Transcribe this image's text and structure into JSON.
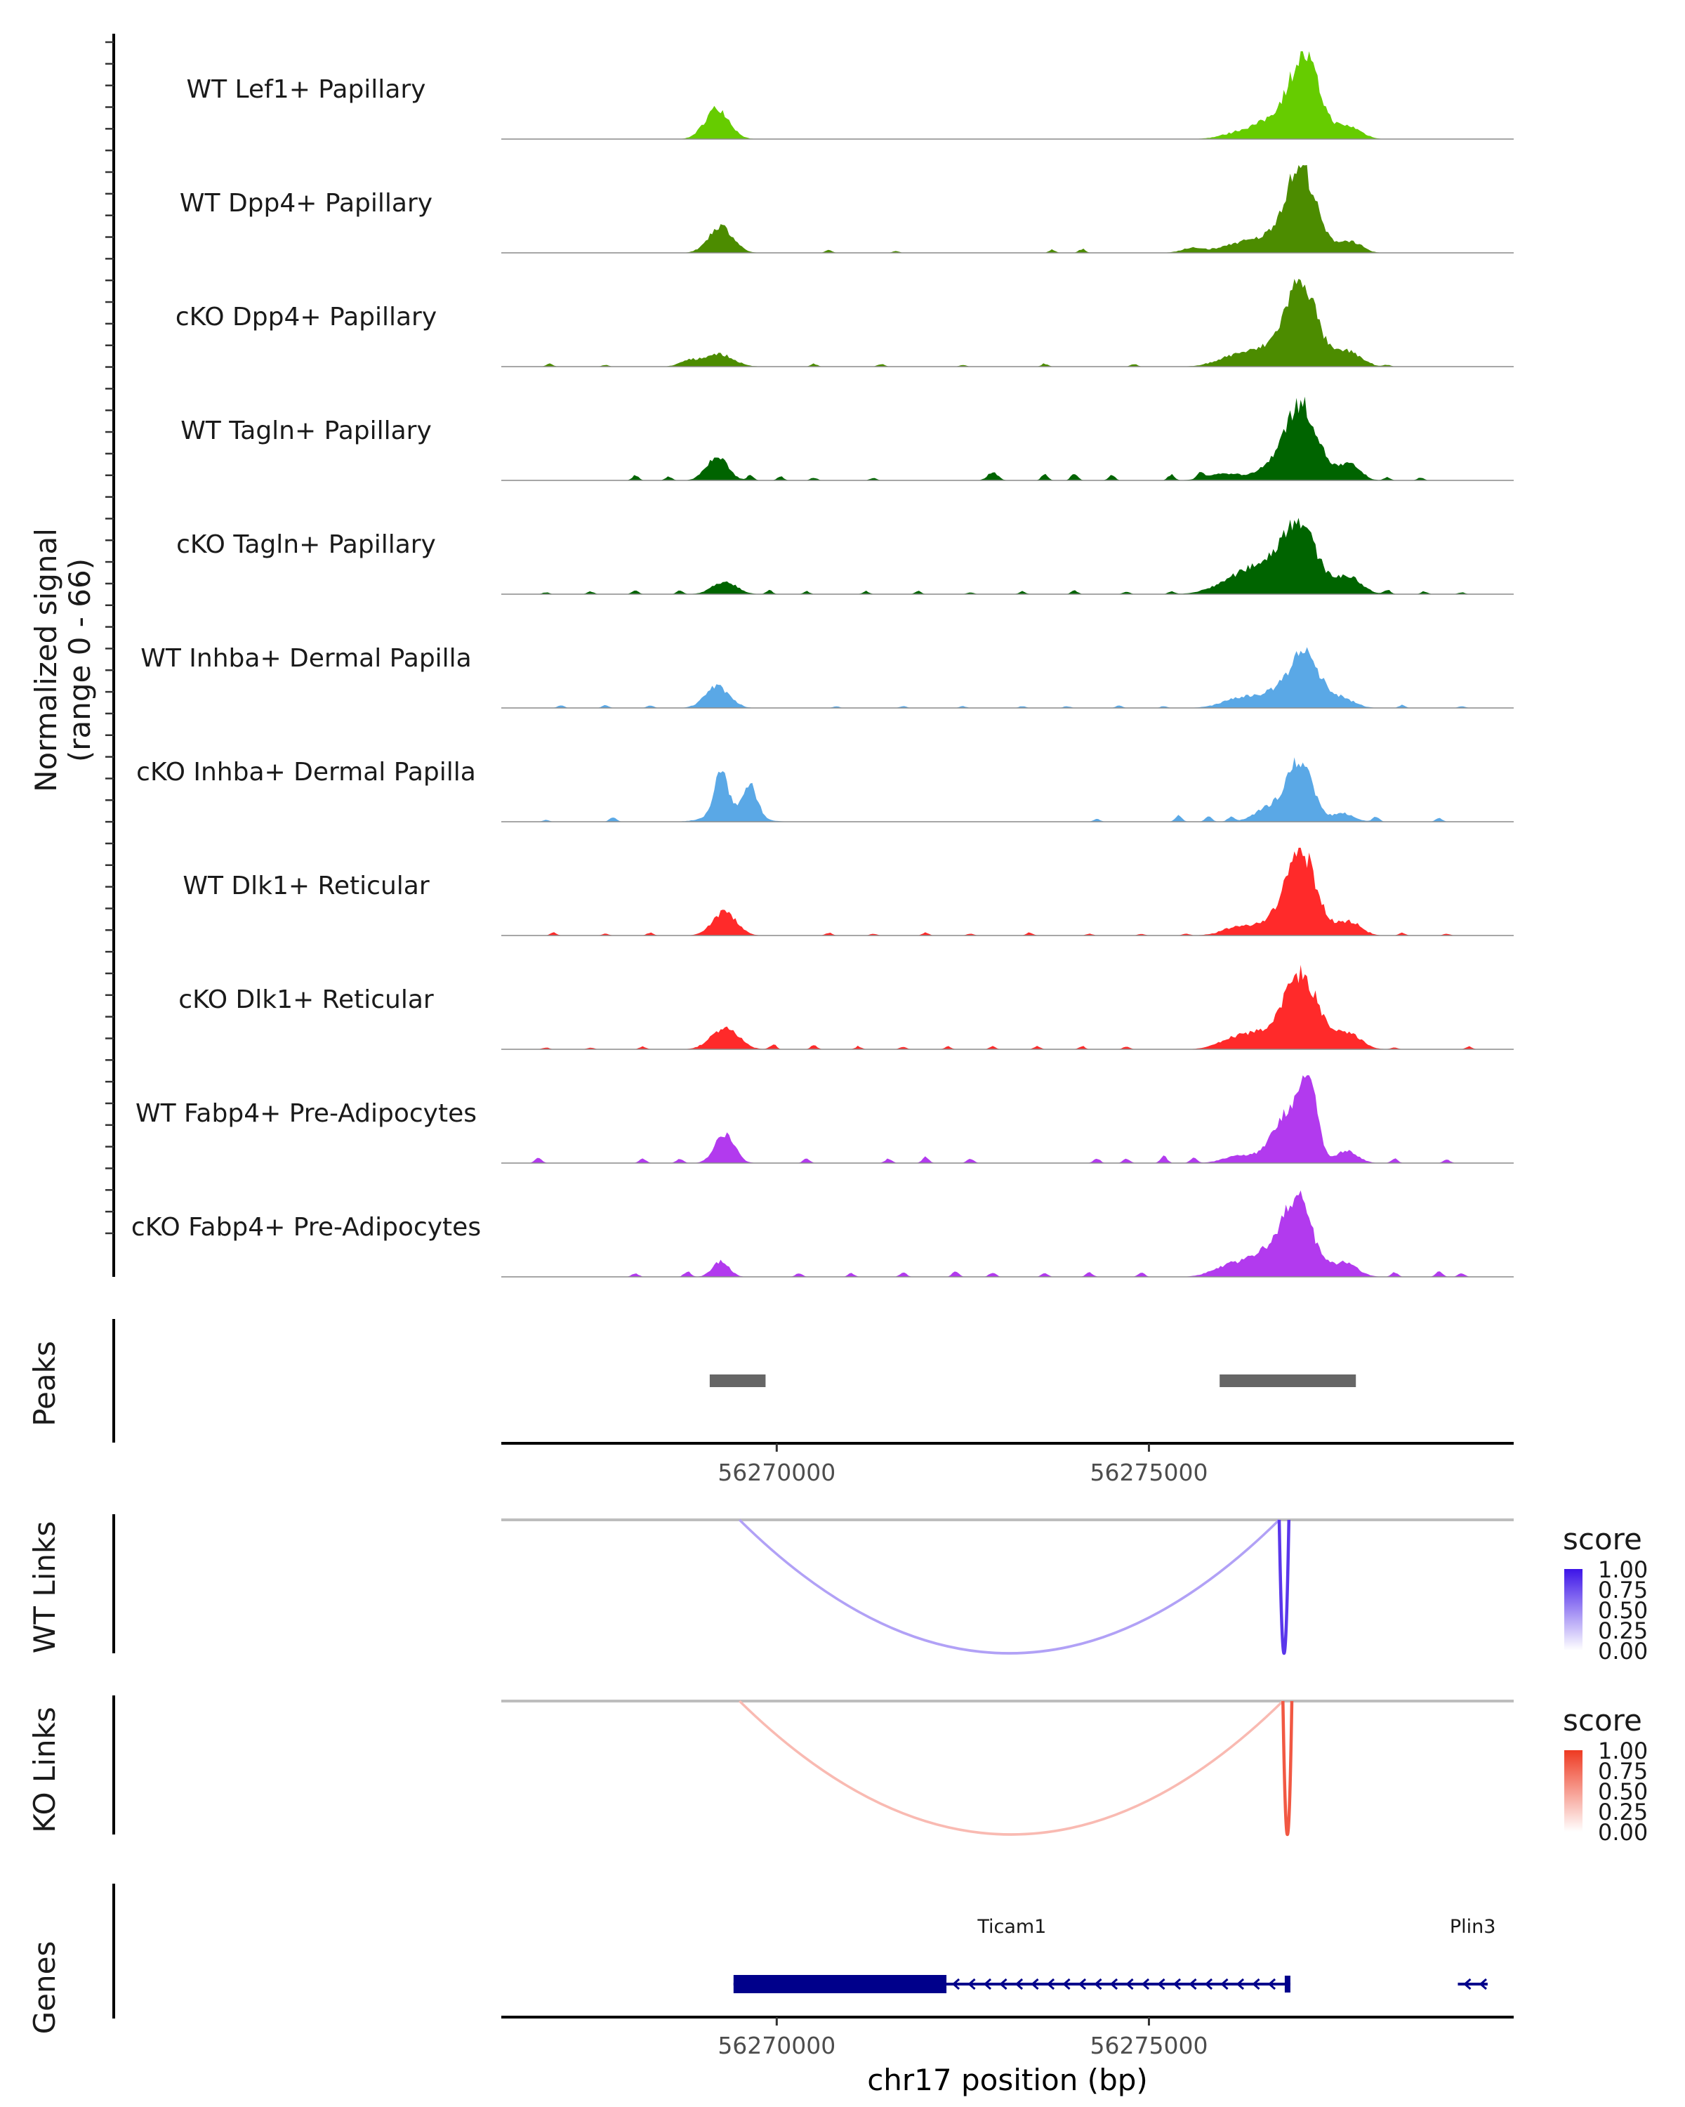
{
  "chart_data": {
    "type": "area",
    "title": "",
    "xlabel": "chr17 position (bp)",
    "x_range": [
      56266300,
      56279900
    ],
    "x_ticks": [
      {
        "value": 56270000,
        "label": "56270000"
      },
      {
        "value": 56275000,
        "label": "56275000"
      }
    ],
    "coverage": {
      "ylabel_line1": "Normalized signal",
      "ylabel_line2": "(range 0 - 66)",
      "y_range": [
        0,
        66
      ],
      "tracks": [
        {
          "name": "WT Lef1+ Papillary",
          "color": "#66CC00",
          "peaks": [
            [
              56269200,
              0.35,
              160
            ],
            [
              56277100,
              0.64,
              180
            ],
            [
              56276950,
              0.35,
              320
            ],
            [
              56277700,
              0.12,
              160
            ],
            [
              56276300,
              0.08,
              260
            ]
          ],
          "noise": [],
          "baseline": 0.005
        },
        {
          "name": "WT Dpp4+ Papillary",
          "color": "#4C8C00",
          "peaks": [
            [
              56269250,
              0.3,
              160
            ],
            [
              56277050,
              0.72,
              180
            ],
            [
              56276900,
              0.3,
              320
            ],
            [
              56277700,
              0.12,
              150
            ],
            [
              56276200,
              0.09,
              220
            ],
            [
              56275600,
              0.05,
              160
            ]
          ],
          "noise": [
            [
              56274100,
              0.04
            ],
            [
              56273700,
              0.03
            ],
            [
              56270700,
              0.03
            ],
            [
              56271600,
              0.02
            ]
          ],
          "baseline": 0.01
        },
        {
          "name": "cKO Dpp4+ Papillary",
          "color": "#4C8C00",
          "peaks": [
            [
              56269200,
              0.14,
              200
            ],
            [
              56277050,
              0.66,
              180
            ],
            [
              56276950,
              0.35,
              340
            ],
            [
              56277700,
              0.14,
              160
            ],
            [
              56276200,
              0.12,
              260
            ],
            [
              56268800,
              0.05,
              120
            ]
          ],
          "noise": [
            [
              56266950,
              0.03
            ],
            [
              56267700,
              0.02
            ],
            [
              56270500,
              0.03
            ],
            [
              56271400,
              0.03
            ],
            [
              56272500,
              0.02
            ],
            [
              56273600,
              0.03
            ],
            [
              56274800,
              0.03
            ],
            [
              56278200,
              0.02
            ]
          ],
          "baseline": 0.01
        },
        {
          "name": "WT Tagln+ Papillary",
          "color": "#006400",
          "peaks": [
            [
              56269200,
              0.27,
              140
            ],
            [
              56277050,
              0.58,
              200
            ],
            [
              56276950,
              0.3,
              320
            ],
            [
              56277700,
              0.16,
              140
            ],
            [
              56276000,
              0.07,
              220
            ],
            [
              56272900,
              0.09,
              70
            ]
          ],
          "noise": [
            [
              56268100,
              0.05
            ],
            [
              56268550,
              0.04
            ],
            [
              56269650,
              0.05
            ],
            [
              56270050,
              0.04
            ],
            [
              56270500,
              0.03
            ],
            [
              56271300,
              0.03
            ],
            [
              56273600,
              0.06
            ],
            [
              56274000,
              0.07
            ],
            [
              56274500,
              0.05
            ],
            [
              56275300,
              0.06
            ],
            [
              56275700,
              0.07
            ],
            [
              56278200,
              0.03
            ],
            [
              56278650,
              0.03
            ]
          ],
          "baseline": 0.01
        },
        {
          "name": "cKO Tagln+ Papillary",
          "color": "#006400",
          "peaks": [
            [
              56269300,
              0.14,
              160
            ],
            [
              56277000,
              0.54,
              200
            ],
            [
              56276950,
              0.3,
              400
            ],
            [
              56277700,
              0.14,
              160
            ],
            [
              56276200,
              0.14,
              300
            ],
            [
              56276500,
              0.1,
              240
            ]
          ],
          "noise": [
            [
              56266900,
              0.02
            ],
            [
              56267500,
              0.03
            ],
            [
              56268100,
              0.04
            ],
            [
              56268700,
              0.04
            ],
            [
              56269900,
              0.04
            ],
            [
              56270400,
              0.03
            ],
            [
              56271200,
              0.03
            ],
            [
              56271900,
              0.03
            ],
            [
              56272600,
              0.02
            ],
            [
              56273300,
              0.03
            ],
            [
              56274000,
              0.04
            ],
            [
              56274700,
              0.03
            ],
            [
              56275300,
              0.03
            ],
            [
              56278200,
              0.04
            ],
            [
              56278700,
              0.03
            ],
            [
              56279200,
              0.02
            ]
          ],
          "baseline": 0.01
        },
        {
          "name": "WT Inhba+ Dermal Papilla",
          "color": "#5AA8E6",
          "peaks": [
            [
              56269200,
              0.24,
              160
            ],
            [
              56277100,
              0.44,
              180
            ],
            [
              56276900,
              0.22,
              360
            ],
            [
              56277600,
              0.08,
              160
            ],
            [
              56276200,
              0.08,
              240
            ]
          ],
          "noise": [
            [
              56267100,
              0.03
            ],
            [
              56267700,
              0.03
            ],
            [
              56268300,
              0.03
            ],
            [
              56270800,
              0.02
            ],
            [
              56271700,
              0.02
            ],
            [
              56272500,
              0.02
            ],
            [
              56273300,
              0.02
            ],
            [
              56273900,
              0.02
            ],
            [
              56274600,
              0.03
            ],
            [
              56275200,
              0.02
            ],
            [
              56278400,
              0.03
            ],
            [
              56279200,
              0.02
            ]
          ],
          "baseline": 0.01
        },
        {
          "name": "cKO Inhba+ Dermal Papilla",
          "color": "#5AA8E6",
          "peaks": [
            [
              56269250,
              0.46,
              90
            ],
            [
              56269650,
              0.34,
              90
            ],
            [
              56269400,
              0.14,
              260
            ],
            [
              56276950,
              0.5,
              130
            ],
            [
              56277150,
              0.38,
              120
            ],
            [
              56276650,
              0.18,
              200
            ],
            [
              56277600,
              0.1,
              150
            ]
          ],
          "noise": [
            [
              56266900,
              0.02
            ],
            [
              56267800,
              0.05
            ],
            [
              56274300,
              0.03
            ],
            [
              56275400,
              0.07
            ],
            [
              56275800,
              0.06
            ],
            [
              56276100,
              0.05
            ],
            [
              56278050,
              0.06
            ],
            [
              56278900,
              0.04
            ]
          ],
          "baseline": 0.0
        },
        {
          "name": "WT Dlk1+ Reticular",
          "color": "#FF2A2A",
          "peaks": [
            [
              56269300,
              0.26,
              160
            ],
            [
              56277050,
              0.68,
              180
            ],
            [
              56276950,
              0.3,
              320
            ],
            [
              56277700,
              0.14,
              150
            ],
            [
              56276200,
              0.08,
              220
            ]
          ],
          "noise": [
            [
              56267000,
              0.03
            ],
            [
              56267700,
              0.02
            ],
            [
              56268300,
              0.03
            ],
            [
              56270700,
              0.03
            ],
            [
              56271300,
              0.02
            ],
            [
              56272000,
              0.03
            ],
            [
              56272600,
              0.02
            ],
            [
              56273400,
              0.03
            ],
            [
              56274200,
              0.02
            ],
            [
              56274900,
              0.02
            ],
            [
              56275500,
              0.02
            ],
            [
              56278400,
              0.03
            ],
            [
              56279000,
              0.02
            ]
          ],
          "baseline": 0.01
        },
        {
          "name": "cKO Dlk1+ Reticular",
          "color": "#FF2A2A",
          "peaks": [
            [
              56269300,
              0.24,
              180
            ],
            [
              56277050,
              0.54,
              200
            ],
            [
              56276950,
              0.32,
              360
            ],
            [
              56277700,
              0.14,
              160
            ],
            [
              56276200,
              0.12,
              240
            ]
          ],
          "noise": [
            [
              56266900,
              0.02
            ],
            [
              56267500,
              0.02
            ],
            [
              56268200,
              0.03
            ],
            [
              56269950,
              0.05
            ],
            [
              56270500,
              0.04
            ],
            [
              56271100,
              0.03
            ],
            [
              56271700,
              0.03
            ],
            [
              56272300,
              0.03
            ],
            [
              56272900,
              0.03
            ],
            [
              56273500,
              0.03
            ],
            [
              56274100,
              0.03
            ],
            [
              56274700,
              0.03
            ],
            [
              56278300,
              0.02
            ],
            [
              56279300,
              0.03
            ]
          ],
          "baseline": 0.01
        },
        {
          "name": "WT Fabp4+ Pre-Adipocytes",
          "color": "#B23AEE",
          "peaks": [
            [
              56269300,
              0.34,
              130
            ],
            [
              56277150,
              0.9,
              110
            ],
            [
              56276900,
              0.5,
              180
            ],
            [
              56276700,
              0.14,
              200
            ],
            [
              56277650,
              0.14,
              150
            ],
            [
              56276200,
              0.08,
              200
            ]
          ],
          "noise": [
            [
              56266800,
              0.06
            ],
            [
              56268200,
              0.05
            ],
            [
              56268700,
              0.05
            ],
            [
              56270400,
              0.05
            ],
            [
              56271500,
              0.05
            ],
            [
              56272000,
              0.07
            ],
            [
              56272600,
              0.05
            ],
            [
              56274300,
              0.05
            ],
            [
              56274700,
              0.05
            ],
            [
              56275200,
              0.08
            ],
            [
              56275600,
              0.06
            ],
            [
              56278300,
              0.05
            ],
            [
              56279000,
              0.04
            ]
          ],
          "baseline": 0.0
        },
        {
          "name": "cKO Fabp4+ Pre-Adipocytes",
          "color": "#B23AEE",
          "peaks": [
            [
              56269250,
              0.18,
              110
            ],
            [
              56277000,
              0.6,
              170
            ],
            [
              56276900,
              0.34,
              320
            ],
            [
              56276400,
              0.14,
              260
            ],
            [
              56277650,
              0.14,
              160
            ],
            [
              56276000,
              0.08,
              200
            ]
          ],
          "noise": [
            [
              56268100,
              0.04
            ],
            [
              56268800,
              0.06
            ],
            [
              56270300,
              0.04
            ],
            [
              56271000,
              0.04
            ],
            [
              56271700,
              0.05
            ],
            [
              56272400,
              0.06
            ],
            [
              56272900,
              0.05
            ],
            [
              56273600,
              0.04
            ],
            [
              56274200,
              0.05
            ],
            [
              56274900,
              0.05
            ],
            [
              56278300,
              0.05
            ],
            [
              56278900,
              0.06
            ],
            [
              56279200,
              0.04
            ]
          ],
          "baseline": 0.0
        }
      ]
    },
    "peaks_track": {
      "label": "Peaks",
      "color": "#666666",
      "regions": [
        [
          56269100,
          56269850
        ],
        [
          56275950,
          56277780
        ]
      ]
    },
    "links": [
      {
        "label": "WT Links",
        "legend_title": "score",
        "color_low": "#FFFFFF",
        "color_high": "#3D14E8",
        "legend_values": [
          "1.00",
          "0.75",
          "0.50",
          "0.25",
          "0.00"
        ],
        "arcs": [
          {
            "start": 56269500,
            "end": 56276750,
            "score": 0.4
          },
          {
            "start": 56276750,
            "end": 56276880,
            "score": 0.85
          }
        ]
      },
      {
        "label": "KO Links",
        "legend_title": "score",
        "color_low": "#FFFFFF",
        "color_high": "#EE3A22",
        "legend_values": [
          "1.00",
          "0.75",
          "0.50",
          "0.25",
          "0.00"
        ],
        "arcs": [
          {
            "start": 56269500,
            "end": 56276800,
            "score": 0.35
          },
          {
            "start": 56276800,
            "end": 56276920,
            "score": 0.85
          }
        ]
      }
    ],
    "genes": {
      "label": "Genes",
      "color": "#00008B",
      "items": [
        {
          "name": "Ticam1",
          "start": 56269420,
          "end": 56276900,
          "thick_start": 56269420,
          "thick_end": 56272280,
          "strand": "-"
        },
        {
          "name": "Plin3",
          "start": 56279150,
          "end": 56279550,
          "thick_start": 56279150,
          "thick_end": 56279150,
          "strand": "-"
        }
      ]
    }
  }
}
